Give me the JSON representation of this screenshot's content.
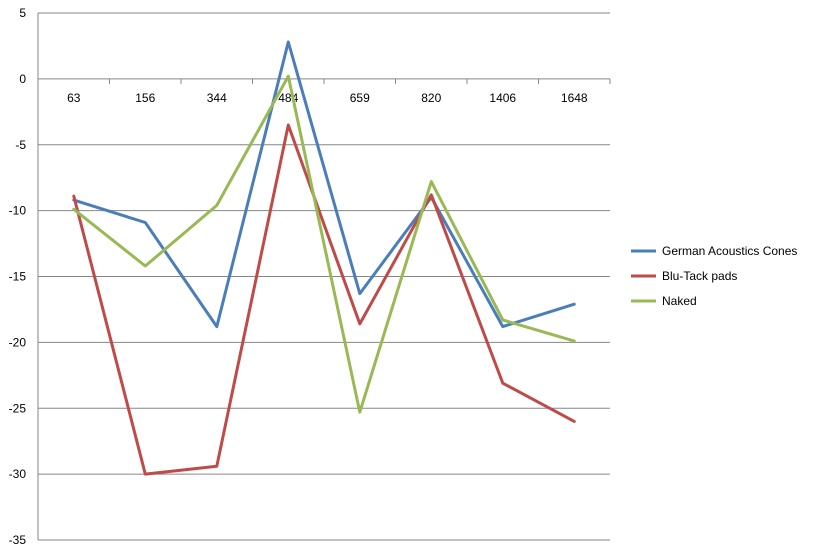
{
  "chart_data": {
    "type": "line",
    "categories": [
      "63",
      "156",
      "344",
      "484",
      "659",
      "820",
      "1406",
      "1648"
    ],
    "ylim": [
      -35,
      5
    ],
    "yticks": [
      5,
      0,
      -5,
      -10,
      -15,
      -20,
      -25,
      -30,
      -35
    ],
    "grid": true,
    "legend": "right",
    "series": [
      {
        "name": "German Acoustics Cones",
        "color": "#4a7ebb",
        "values": [
          -9.2,
          -10.9,
          -18.8,
          2.8,
          -16.3,
          -9.0,
          -18.8,
          -17.1
        ]
      },
      {
        "name": "Blu-Tack pads",
        "color": "#be4b48",
        "values": [
          -8.9,
          -30.0,
          -29.4,
          -3.5,
          -18.6,
          -8.8,
          -23.1,
          -26.0
        ]
      },
      {
        "name": "Naked",
        "color": "#98b954",
        "values": [
          -9.9,
          -14.2,
          -9.6,
          0.2,
          -25.3,
          -7.8,
          -18.3,
          -19.9
        ]
      }
    ]
  }
}
